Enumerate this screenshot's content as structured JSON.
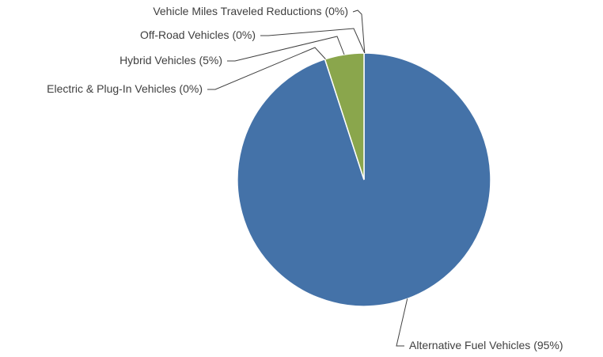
{
  "chart_data": {
    "type": "pie",
    "title": "",
    "categories": [
      "Alternative Fuel Vehicles",
      "Electric & Plug-In Vehicles",
      "Hybrid Vehicles",
      "Off-Road Vehicles",
      "Vehicle Miles Traveled Reductions"
    ],
    "values": [
      95,
      0,
      5,
      0,
      0
    ],
    "labels": [
      "Alternative Fuel Vehicles (95%)",
      "Electric & Plug-In Vehicles (0%)",
      "Hybrid Vehicles (5%)",
      "Off-Road Vehicles (0%)",
      "Vehicle Miles Traveled Reductions (0%)"
    ],
    "colors": [
      "#4472a8",
      "#4472a8",
      "#8aa64c",
      "#4472a8",
      "#4472a8"
    ],
    "start_angle": "12 o'clock",
    "direction": "clockwise",
    "legend": "none",
    "data_labels": "outside with leader lines"
  }
}
